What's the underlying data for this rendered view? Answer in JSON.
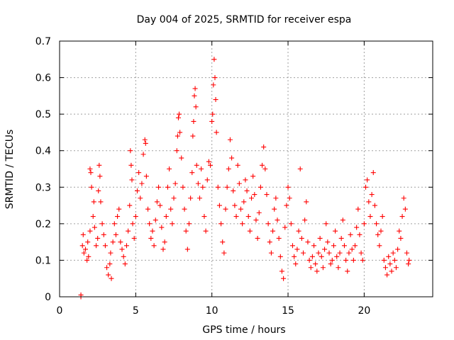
{
  "chart_data": {
    "type": "scatter",
    "title": "Day 004 of 2025, SRMTID for receiver espa",
    "xlabel": "GPS time / hours",
    "ylabel": "SRMTID / TECUs",
    "xlim": [
      0,
      24.5
    ],
    "ylim": [
      0,
      0.7
    ],
    "xticks": [
      0,
      5,
      10,
      15,
      20
    ],
    "yticks": [
      0,
      0.1,
      0.2,
      0.3,
      0.4,
      0.5,
      0.6,
      0.7
    ],
    "xtick_labels": [
      "0",
      "5",
      "10",
      "15",
      "20"
    ],
    "ytick_labels": [
      "0",
      "0.1",
      "0.2",
      "0.3",
      "0.4",
      "0.5",
      "0.6",
      "0.7"
    ],
    "grid": true,
    "marker": "plus",
    "series_color": "#ff0000",
    "series": [
      {
        "name": "SRMTID",
        "points": [
          [
            1.4,
            0.0
          ],
          [
            1.4,
            0.005
          ],
          [
            1.5,
            0.14
          ],
          [
            1.55,
            0.17
          ],
          [
            1.6,
            0.12
          ],
          [
            1.7,
            0.13
          ],
          [
            1.8,
            0.1
          ],
          [
            1.85,
            0.15
          ],
          [
            1.9,
            0.11
          ],
          [
            2.0,
            0.18
          ],
          [
            2.0,
            0.35
          ],
          [
            2.05,
            0.34
          ],
          [
            2.1,
            0.3
          ],
          [
            2.2,
            0.22
          ],
          [
            2.25,
            0.26
          ],
          [
            2.3,
            0.19
          ],
          [
            2.4,
            0.14
          ],
          [
            2.5,
            0.16
          ],
          [
            2.55,
            0.29
          ],
          [
            2.6,
            0.36
          ],
          [
            2.65,
            0.33
          ],
          [
            2.7,
            0.26
          ],
          [
            2.8,
            0.2
          ],
          [
            2.9,
            0.17
          ],
          [
            3.0,
            0.14
          ],
          [
            3.1,
            0.08
          ],
          [
            3.2,
            0.06
          ],
          [
            3.3,
            0.09
          ],
          [
            3.35,
            0.12
          ],
          [
            3.4,
            0.05
          ],
          [
            3.5,
            0.15
          ],
          [
            3.6,
            0.2
          ],
          [
            3.7,
            0.17
          ],
          [
            3.8,
            0.22
          ],
          [
            3.9,
            0.24
          ],
          [
            4.0,
            0.15
          ],
          [
            4.1,
            0.13
          ],
          [
            4.2,
            0.11
          ],
          [
            4.3,
            0.09
          ],
          [
            4.4,
            0.14
          ],
          [
            4.5,
            0.18
          ],
          [
            4.6,
            0.25
          ],
          [
            4.65,
            0.4
          ],
          [
            4.7,
            0.36
          ],
          [
            4.75,
            0.32
          ],
          [
            4.8,
            0.2
          ],
          [
            4.9,
            0.16
          ],
          [
            5.0,
            0.22
          ],
          [
            5.1,
            0.29
          ],
          [
            5.2,
            0.34
          ],
          [
            5.3,
            0.27
          ],
          [
            5.4,
            0.31
          ],
          [
            5.5,
            0.39
          ],
          [
            5.6,
            0.43
          ],
          [
            5.65,
            0.42
          ],
          [
            5.7,
            0.33
          ],
          [
            5.8,
            0.24
          ],
          [
            5.9,
            0.2
          ],
          [
            6.0,
            0.16
          ],
          [
            6.1,
            0.18
          ],
          [
            6.2,
            0.14
          ],
          [
            6.3,
            0.21
          ],
          [
            6.4,
            0.26
          ],
          [
            6.5,
            0.3
          ],
          [
            6.6,
            0.25
          ],
          [
            6.7,
            0.19
          ],
          [
            6.8,
            0.13
          ],
          [
            6.9,
            0.15
          ],
          [
            7.0,
            0.22
          ],
          [
            7.1,
            0.3
          ],
          [
            7.2,
            0.35
          ],
          [
            7.3,
            0.24
          ],
          [
            7.4,
            0.2
          ],
          [
            7.5,
            0.27
          ],
          [
            7.6,
            0.31
          ],
          [
            7.7,
            0.4
          ],
          [
            7.75,
            0.44
          ],
          [
            7.8,
            0.49
          ],
          [
            7.85,
            0.5
          ],
          [
            7.9,
            0.45
          ],
          [
            8.0,
            0.38
          ],
          [
            8.1,
            0.3
          ],
          [
            8.2,
            0.24
          ],
          [
            8.3,
            0.18
          ],
          [
            8.4,
            0.13
          ],
          [
            8.5,
            0.2
          ],
          [
            8.6,
            0.27
          ],
          [
            8.7,
            0.34
          ],
          [
            8.75,
            0.44
          ],
          [
            8.8,
            0.48
          ],
          [
            8.85,
            0.55
          ],
          [
            8.9,
            0.57
          ],
          [
            8.95,
            0.52
          ],
          [
            9.0,
            0.36
          ],
          [
            9.1,
            0.31
          ],
          [
            9.2,
            0.27
          ],
          [
            9.3,
            0.35
          ],
          [
            9.4,
            0.3
          ],
          [
            9.5,
            0.22
          ],
          [
            9.6,
            0.18
          ],
          [
            9.7,
            0.32
          ],
          [
            9.8,
            0.37
          ],
          [
            9.9,
            0.36
          ],
          [
            10.0,
            0.48
          ],
          [
            10.05,
            0.5
          ],
          [
            10.1,
            0.58
          ],
          [
            10.15,
            0.65
          ],
          [
            10.2,
            0.6
          ],
          [
            10.25,
            0.54
          ],
          [
            10.3,
            0.45
          ],
          [
            10.4,
            0.3
          ],
          [
            10.5,
            0.25
          ],
          [
            10.6,
            0.2
          ],
          [
            10.7,
            0.15
          ],
          [
            10.8,
            0.12
          ],
          [
            10.9,
            0.24
          ],
          [
            11.0,
            0.3
          ],
          [
            11.1,
            0.35
          ],
          [
            11.2,
            0.43
          ],
          [
            11.3,
            0.38
          ],
          [
            11.4,
            0.29
          ],
          [
            11.5,
            0.25
          ],
          [
            11.6,
            0.22
          ],
          [
            11.7,
            0.36
          ],
          [
            11.8,
            0.31
          ],
          [
            11.9,
            0.24
          ],
          [
            12.0,
            0.2
          ],
          [
            12.1,
            0.26
          ],
          [
            12.2,
            0.32
          ],
          [
            12.3,
            0.29
          ],
          [
            12.4,
            0.22
          ],
          [
            12.5,
            0.18
          ],
          [
            12.6,
            0.27
          ],
          [
            12.7,
            0.33
          ],
          [
            12.8,
            0.28
          ],
          [
            12.9,
            0.21
          ],
          [
            13.0,
            0.16
          ],
          [
            13.1,
            0.23
          ],
          [
            13.2,
            0.3
          ],
          [
            13.3,
            0.36
          ],
          [
            13.4,
            0.41
          ],
          [
            13.5,
            0.35
          ],
          [
            13.6,
            0.28
          ],
          [
            13.7,
            0.2
          ],
          [
            13.8,
            0.15
          ],
          [
            13.9,
            0.12
          ],
          [
            14.0,
            0.18
          ],
          [
            14.1,
            0.24
          ],
          [
            14.2,
            0.27
          ],
          [
            14.3,
            0.21
          ],
          [
            14.4,
            0.16
          ],
          [
            14.5,
            0.11
          ],
          [
            14.6,
            0.07
          ],
          [
            14.7,
            0.05
          ],
          [
            14.8,
            0.19
          ],
          [
            14.9,
            0.25
          ],
          [
            15.0,
            0.3
          ],
          [
            15.1,
            0.27
          ],
          [
            15.2,
            0.2
          ],
          [
            15.3,
            0.14
          ],
          [
            15.4,
            0.11
          ],
          [
            15.5,
            0.09
          ],
          [
            15.6,
            0.13
          ],
          [
            15.7,
            0.18
          ],
          [
            15.8,
            0.35
          ],
          [
            15.9,
            0.16
          ],
          [
            16.0,
            0.12
          ],
          [
            16.1,
            0.21
          ],
          [
            16.2,
            0.26
          ],
          [
            16.3,
            0.15
          ],
          [
            16.4,
            0.1
          ],
          [
            16.5,
            0.08
          ],
          [
            16.6,
            0.11
          ],
          [
            16.7,
            0.14
          ],
          [
            16.8,
            0.09
          ],
          [
            16.9,
            0.07
          ],
          [
            17.0,
            0.12
          ],
          [
            17.1,
            0.16
          ],
          [
            17.2,
            0.11
          ],
          [
            17.3,
            0.08
          ],
          [
            17.4,
            0.13
          ],
          [
            17.5,
            0.2
          ],
          [
            17.6,
            0.15
          ],
          [
            17.7,
            0.12
          ],
          [
            17.8,
            0.09
          ],
          [
            17.9,
            0.1
          ],
          [
            18.0,
            0.14
          ],
          [
            18.1,
            0.18
          ],
          [
            18.2,
            0.11
          ],
          [
            18.3,
            0.08
          ],
          [
            18.4,
            0.12
          ],
          [
            18.5,
            0.16
          ],
          [
            18.6,
            0.21
          ],
          [
            18.7,
            0.14
          ],
          [
            18.8,
            0.1
          ],
          [
            18.9,
            0.07
          ],
          [
            19.0,
            0.12
          ],
          [
            19.1,
            0.17
          ],
          [
            19.2,
            0.13
          ],
          [
            19.3,
            0.1
          ],
          [
            19.4,
            0.14
          ],
          [
            19.5,
            0.19
          ],
          [
            19.6,
            0.24
          ],
          [
            19.7,
            0.17
          ],
          [
            19.8,
            0.12
          ],
          [
            19.9,
            0.1
          ],
          [
            20.0,
            0.2
          ],
          [
            20.1,
            0.3
          ],
          [
            20.2,
            0.32
          ],
          [
            20.3,
            0.26
          ],
          [
            20.4,
            0.22
          ],
          [
            20.5,
            0.28
          ],
          [
            20.6,
            0.34
          ],
          [
            20.7,
            0.25
          ],
          [
            20.8,
            0.2
          ],
          [
            20.9,
            0.17
          ],
          [
            21.0,
            0.14
          ],
          [
            21.1,
            0.18
          ],
          [
            21.2,
            0.22
          ],
          [
            21.3,
            0.1
          ],
          [
            21.4,
            0.08
          ],
          [
            21.5,
            0.06
          ],
          [
            21.6,
            0.11
          ],
          [
            21.7,
            0.09
          ],
          [
            21.8,
            0.07
          ],
          [
            21.9,
            0.12
          ],
          [
            22.0,
            0.1
          ],
          [
            22.1,
            0.08
          ],
          [
            22.2,
            0.13
          ],
          [
            22.3,
            0.18
          ],
          [
            22.4,
            0.16
          ],
          [
            22.5,
            0.22
          ],
          [
            22.6,
            0.27
          ],
          [
            22.7,
            0.24
          ],
          [
            22.8,
            0.12
          ],
          [
            22.9,
            0.09
          ],
          [
            22.95,
            0.1
          ]
        ]
      }
    ]
  }
}
